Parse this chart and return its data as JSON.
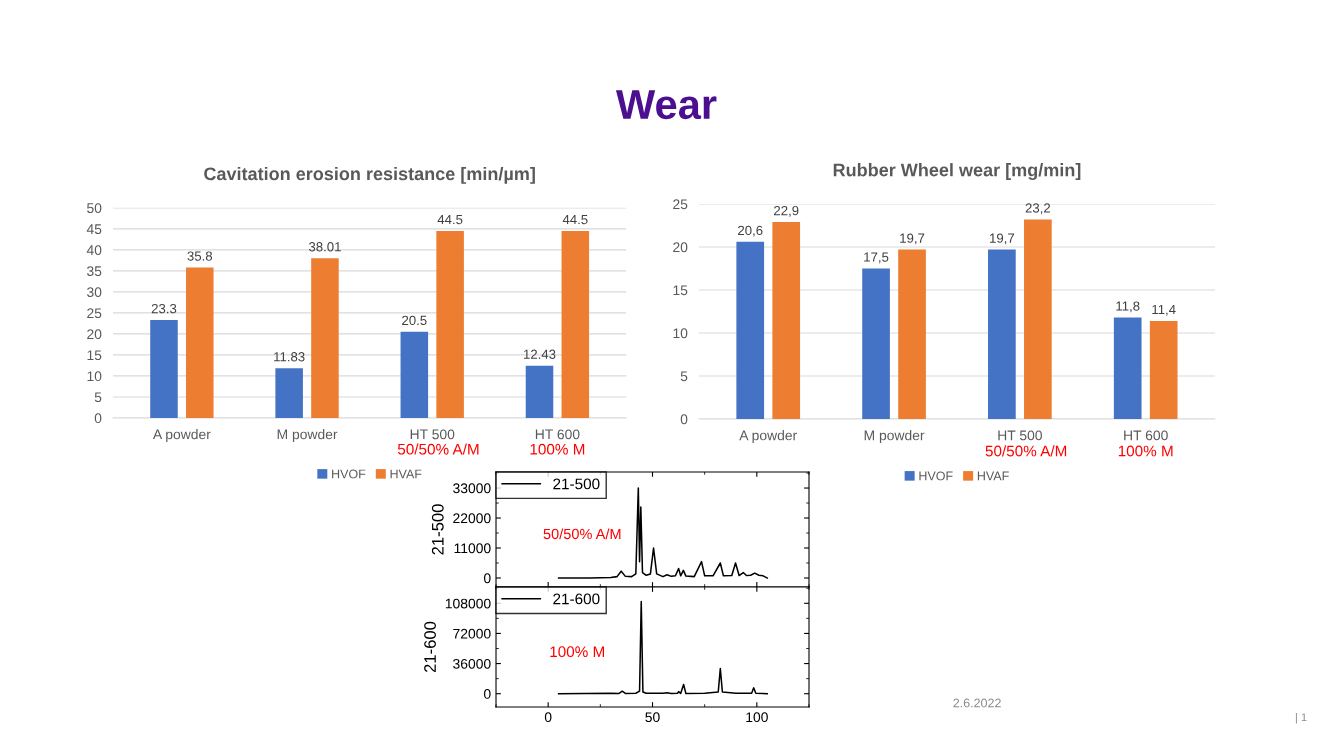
{
  "chart_data": [
    {
      "type": "bar",
      "title": "Cavitation erosion resistance [min/µm]",
      "categories": [
        "A powder",
        "M powder",
        "HT 500",
        "HT 600"
      ],
      "series": [
        {
          "name": "HVOF",
          "color": "#4472c4",
          "values": [
            23.3,
            11.83,
            20.5,
            12.43
          ]
        },
        {
          "name": "HVAF",
          "color": "#ed7d31",
          "values": [
            35.8,
            38.01,
            44.5,
            44.5
          ]
        }
      ],
      "ylim": [
        0,
        50
      ],
      "yticks": [
        0,
        5,
        10,
        15,
        20,
        25,
        30,
        35,
        40,
        45,
        50
      ],
      "grid": "y",
      "legend": "bottom",
      "data_labels": true,
      "annotations": [
        "Wear",
        "50/50% A/M",
        "100% M",
        "2.6.2022",
        "| 1"
      ]
    },
    {
      "type": "bar",
      "title": "Rubber Wheel wear [mg/min]",
      "categories": [
        "A powder",
        "M powder",
        "HT 500",
        "HT 600"
      ],
      "series": [
        {
          "name": "HVOF",
          "color": "#4472c4",
          "values": [
            20.6,
            17.5,
            19.7,
            11.8
          ],
          "value_labels": [
            "20,6",
            "17,5",
            "19,7",
            "11,8"
          ]
        },
        {
          "name": "HVAF",
          "color": "#ed7d31",
          "values": [
            22.9,
            19.7,
            23.2,
            11.4
          ],
          "value_labels": [
            "22,9",
            "19,7",
            "23,2",
            "11,4"
          ]
        }
      ],
      "ylim": [
        0,
        25
      ],
      "yticks": [
        0,
        5,
        10,
        15,
        20,
        25
      ],
      "grid": "y",
      "legend": "bottom",
      "annotations": [
        "50/50% A/M",
        "100% M"
      ]
    },
    {
      "type": "line",
      "ylabel": "21-500",
      "x": [
        5,
        20,
        30,
        33,
        35,
        37,
        40,
        42,
        43.2,
        43.8,
        44.4,
        45.2,
        47,
        49,
        50.5,
        52,
        55,
        57,
        59,
        61,
        62.5,
        63.5,
        64.8,
        66,
        70,
        73.5,
        75,
        79,
        82.5,
        84,
        88,
        89.8,
        91.5,
        93.5,
        95,
        97,
        99,
        101,
        103,
        105
      ],
      "series": [
        {
          "name": "21-500",
          "color": "#000000",
          "values": [
            0,
            0,
            200,
            500,
            2500,
            600,
            500,
            1500,
            33000,
            6000,
            26000,
            2000,
            1000,
            1500,
            11000,
            1500,
            500,
            1200,
            600,
            800,
            3500,
            800,
            2800,
            700,
            500,
            6000,
            800,
            800,
            5500,
            800,
            900,
            5500,
            900,
            2000,
            900,
            1000,
            1800,
            1000,
            800,
            0
          ]
        }
      ],
      "xlim": [
        -25,
        125
      ],
      "xticks": [
        0,
        50,
        100
      ],
      "ylim": [
        -3300,
        38900
      ],
      "yticks": [
        0,
        11000,
        22000,
        33000
      ],
      "tick_labels": "y",
      "legend": "top left",
      "annotations": [
        "50/50% A/M"
      ]
    },
    {
      "type": "line",
      "ylabel": "21-600",
      "x": [
        5,
        30,
        34,
        35.5,
        37,
        42,
        43.8,
        44.6,
        45.4,
        47,
        55,
        57,
        59,
        62,
        62.5,
        63.5,
        64.9,
        66,
        75,
        81.5,
        82.5,
        83.5,
        90,
        97.5,
        98.5,
        99.5,
        105
      ],
      "series": [
        {
          "name": "21-600",
          "color": "#000000",
          "values": [
            0,
            500,
            300,
            3000,
            300,
            500,
            3000,
            110000,
            2000,
            500,
            500,
            1000,
            300,
            500,
            2500,
            300,
            11000,
            300,
            500,
            2000,
            30000,
            2000,
            500,
            500,
            7000,
            500,
            0
          ]
        }
      ],
      "xlim": [
        -25,
        125
      ],
      "xticks": [
        0,
        50,
        100
      ],
      "ylim": [
        -15900,
        127500
      ],
      "yticks": [
        0,
        36000,
        72000,
        108000
      ],
      "legend": "top left",
      "annotations": [
        "100% M"
      ]
    }
  ]
}
